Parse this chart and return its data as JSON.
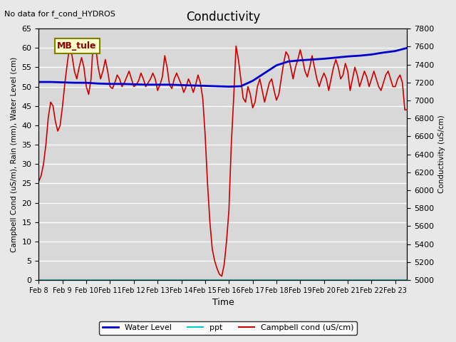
{
  "title": "Conductivity",
  "top_left_text": "No data for f_cond_HYDROS",
  "station_label": "MB_tule",
  "ylabel_left": "Campbell Cond (uS/m), Rain (mm), Water Level (cm)",
  "ylabel_right": "Conductivity (uS/cm)",
  "xlabel": "Time",
  "ylim_left": [
    0,
    65
  ],
  "ylim_right": [
    5000,
    7800
  ],
  "background_color": "#e8e8e8",
  "plot_bg_color": "#d8d8d8",
  "grid_color": "#ffffff",
  "x_tick_labels": [
    "Feb 8",
    "Feb 9",
    "Feb 10",
    "Feb 11",
    "Feb 12",
    "Feb 13",
    "Feb 14",
    "Feb 15",
    "Feb 16",
    "Feb 17",
    "Feb 18",
    "Feb 19",
    "Feb 20",
    "Feb 21",
    "Feb 22",
    "Feb 23"
  ],
  "water_level": {
    "x": [
      0,
      0.5,
      1,
      1.5,
      2,
      2.5,
      3,
      3.5,
      4,
      4.5,
      5,
      5.5,
      6,
      6.5,
      7,
      7.5,
      8,
      8.5,
      9,
      9.5,
      10,
      10.5,
      11,
      11.5,
      12,
      12.5,
      13,
      13.5,
      14,
      14.5,
      15,
      15.5
    ],
    "y": [
      51.2,
      51.2,
      51.1,
      51.0,
      51.0,
      50.8,
      50.7,
      50.7,
      50.6,
      50.5,
      50.5,
      50.5,
      50.4,
      50.3,
      50.2,
      50.1,
      50.0,
      50.1,
      51.5,
      53.5,
      55.5,
      56.5,
      56.8,
      57.0,
      57.2,
      57.5,
      57.8,
      58.0,
      58.3,
      58.8,
      59.2,
      60.0
    ],
    "color": "#0000cc"
  },
  "ppt": {
    "x": [
      0,
      15.5
    ],
    "y": [
      0,
      0
    ],
    "color": "#00cccc"
  },
  "campbell_cond": {
    "x": [
      0,
      0.2,
      0.4,
      0.6,
      0.8,
      1.0,
      1.2,
      1.4,
      1.6,
      1.8,
      2.0,
      2.2,
      2.4,
      2.6,
      2.8,
      3.0,
      3.2,
      3.4,
      3.6,
      3.8,
      4.0,
      4.2,
      4.4,
      4.6,
      4.8,
      5.0,
      5.2,
      5.4,
      5.6,
      5.8,
      6.0,
      6.2,
      6.4,
      6.6,
      6.8,
      7.0,
      7.2,
      7.4,
      7.6,
      7.8,
      8.0,
      8.2,
      8.4,
      8.6,
      8.8,
      9.0,
      9.2,
      9.4,
      9.6,
      9.8,
      10.0,
      10.2,
      10.4,
      10.6,
      10.8,
      11.0,
      11.2,
      11.4,
      11.6,
      11.8,
      12.0,
      12.2,
      12.4,
      12.6,
      12.8,
      13.0,
      13.2,
      13.4,
      13.6,
      13.8,
      14.0,
      14.2,
      14.4,
      14.6,
      14.8,
      15.0,
      15.2,
      15.4,
      15.6,
      15.8,
      16.0,
      16.2,
      16.4,
      16.6,
      16.8,
      17.0,
      17.2,
      17.4,
      17.6,
      17.8,
      18.0,
      18.2,
      18.4,
      18.6,
      18.8,
      19.0,
      19.2,
      19.4,
      19.6,
      19.8,
      20.0,
      20.2,
      20.4,
      20.6,
      20.8,
      21.0,
      21.2,
      21.4,
      21.6,
      21.8,
      22.0,
      22.2,
      22.4,
      22.6,
      22.8,
      23.0,
      23.2,
      23.4,
      23.6,
      23.8,
      24.0,
      24.2,
      24.4,
      24.6,
      24.8,
      25.0,
      25.2,
      25.4,
      25.6,
      25.8,
      26.0,
      26.2,
      26.4,
      26.6,
      26.8,
      27.0,
      27.2,
      27.4,
      27.6,
      27.8,
      28.0,
      28.2,
      28.4,
      28.6,
      28.8,
      29.0,
      29.2,
      29.4,
      29.6,
      29.8,
      30.0,
      30.2,
      30.4,
      30.6,
      30.8,
      31.0
    ],
    "y": [
      25.5,
      27.0,
      30.0,
      35.0,
      42.0,
      46.0,
      45.0,
      41.0,
      38.5,
      40.0,
      45.0,
      51.0,
      56.0,
      60.5,
      58.0,
      54.0,
      52.0,
      55.0,
      57.5,
      55.0,
      50.0,
      48.0,
      52.0,
      62.5,
      60.0,
      55.0,
      52.0,
      54.0,
      57.0,
      54.0,
      50.0,
      49.5,
      51.0,
      53.0,
      52.0,
      50.0,
      51.0,
      52.5,
      54.0,
      52.0,
      50.0,
      50.5,
      51.5,
      53.5,
      52.0,
      50.0,
      51.0,
      52.0,
      53.5,
      52.0,
      49.0,
      50.5,
      52.5,
      58.0,
      55.0,
      50.5,
      49.5,
      52.0,
      53.5,
      52.0,
      50.5,
      48.5,
      50.0,
      52.0,
      50.5,
      48.5,
      50.5,
      53.0,
      51.0,
      47.0,
      37.5,
      25.0,
      15.0,
      8.0,
      5.0,
      3.0,
      1.5,
      1.0,
      4.0,
      10.0,
      18.0,
      35.0,
      47.0,
      60.5,
      57.0,
      52.0,
      47.0,
      46.0,
      50.0,
      48.0,
      44.5,
      46.0,
      50.0,
      52.0,
      49.0,
      46.0,
      48.5,
      51.0,
      52.0,
      49.0,
      46.5,
      48.0,
      52.0,
      56.0,
      59.0,
      58.0,
      55.0,
      52.0,
      55.0,
      57.0,
      59.5,
      57.0,
      54.0,
      52.5,
      55.0,
      58.0,
      55.0,
      52.0,
      50.0,
      52.0,
      53.5,
      52.0,
      49.0,
      52.0,
      55.0,
      57.0,
      55.0,
      52.0,
      53.0,
      56.0,
      54.0,
      49.0,
      52.0,
      55.0,
      53.0,
      50.0,
      52.0,
      54.0,
      52.5,
      50.0,
      52.0,
      54.0,
      52.0,
      50.0,
      49.0,
      51.0,
      53.0,
      54.0,
      52.0,
      50.0,
      50.0,
      52.0,
      53.0,
      51.0,
      44.0,
      44.0
    ],
    "color": "#cc0000"
  },
  "legend": {
    "water_level_label": "Water Level",
    "ppt_label": "ppt",
    "campbell_label": "Campbell cond (uS/cm)"
  }
}
